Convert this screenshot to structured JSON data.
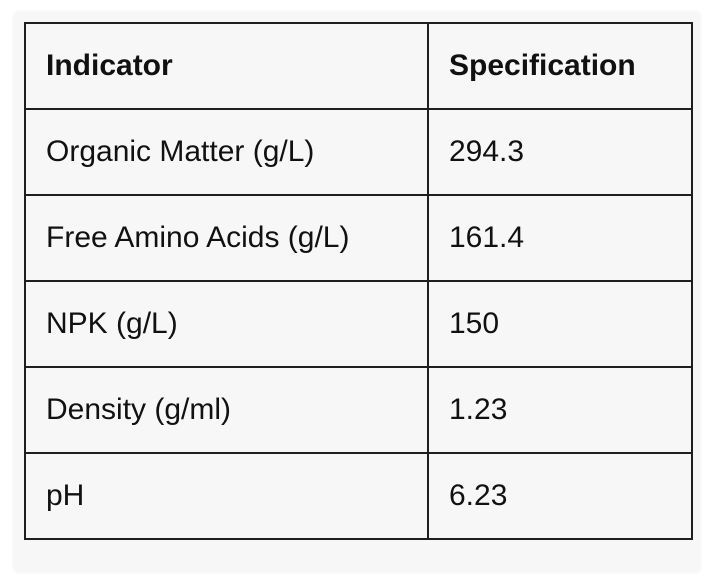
{
  "table": {
    "header": [
      "Indicator",
      "Specification"
    ],
    "rows": [
      [
        "Organic Matter (g/L)",
        "294.3"
      ],
      [
        "Free Amino Acids (g/L)",
        "161.4"
      ],
      [
        "NPK (g/L)",
        "150"
      ],
      [
        "Density (g/ml)",
        "1.23"
      ],
      [
        "pH",
        "6.23"
      ]
    ]
  }
}
